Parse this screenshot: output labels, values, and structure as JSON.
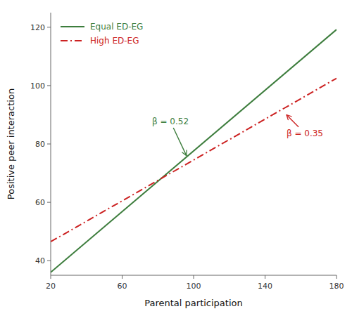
{
  "chart_data": {
    "type": "line",
    "xlabel": "Parental participation",
    "ylabel": "Positive peer interaction",
    "xlim": [
      20,
      180
    ],
    "ylim": [
      35,
      125
    ],
    "xticks": [
      20,
      60,
      100,
      140,
      180
    ],
    "yticks": [
      40,
      60,
      80,
      100,
      120
    ],
    "grid": false,
    "legend": "upper left",
    "x": [
      20,
      180
    ],
    "series": [
      {
        "name": "Equal ED-EG",
        "color": "#3d7d3d",
        "line_style": "solid",
        "values": [
          36.0,
          119.2
        ]
      },
      {
        "name": "High ED-EG",
        "color": "#cc2222",
        "line_style": "dashdot",
        "values": [
          46.5,
          102.5
        ]
      }
    ],
    "annotations": [
      {
        "text": "β = 0.52",
        "color": "#3d7d3d",
        "x": 87,
        "y": 86,
        "target_x": 96,
        "target_y": 76
      },
      {
        "text": "β = 0.35",
        "color": "#cc2222",
        "x": 152,
        "y": 82,
        "target_x": 152,
        "target_y": 90
      }
    ]
  }
}
